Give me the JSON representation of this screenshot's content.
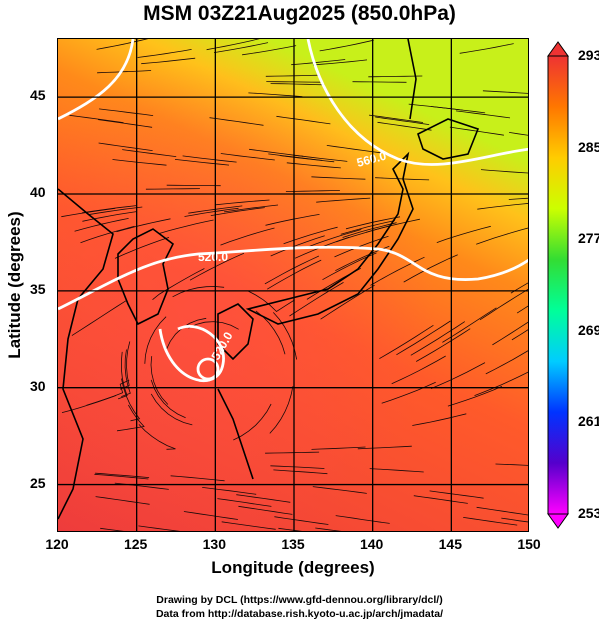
{
  "title": "MSM 03Z21Aug2025 (850.0hPa)",
  "x_axis": {
    "label": "Longitude (degrees)",
    "range": [
      120,
      150
    ],
    "ticks": [
      120,
      125,
      130,
      135,
      140,
      145,
      150
    ]
  },
  "y_axis": {
    "label": "Latitude (degrees)",
    "range": [
      22.5,
      48
    ],
    "ticks": [
      25,
      30,
      35,
      40,
      45
    ]
  },
  "colorbar": {
    "range": [
      253,
      293
    ],
    "labels": [
      293,
      285,
      277,
      269,
      261,
      253
    ],
    "colors": [
      "#ff00ff",
      "#5500cc",
      "#0033ff",
      "#00ccff",
      "#00ff99",
      "#33dd33",
      "#ccff00",
      "#ffcc00",
      "#ff7700",
      "#ee3333"
    ]
  },
  "contour_labels": [
    "520.0",
    "520.0",
    "560.0"
  ],
  "footer": {
    "line1": "Drawing by DCL (https://www.gfd-dennou.org/library/dcl/)",
    "line2": "Data from http://database.rish.kyoto-u.ac.jp/arch/jmadata/"
  }
}
